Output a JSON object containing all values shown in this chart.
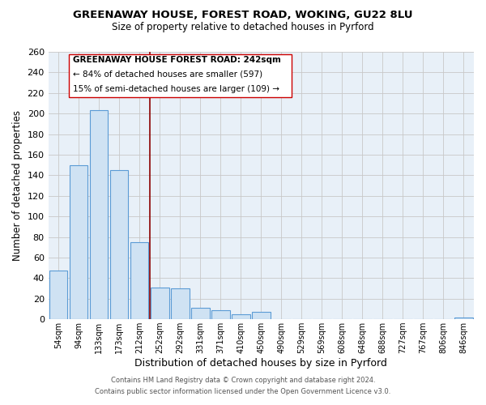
{
  "title1": "GREENAWAY HOUSE, FOREST ROAD, WOKING, GU22 8LU",
  "title2": "Size of property relative to detached houses in Pyrford",
  "xlabel": "Distribution of detached houses by size in Pyrford",
  "ylabel": "Number of detached properties",
  "bar_labels": [
    "54sqm",
    "94sqm",
    "133sqm",
    "173sqm",
    "212sqm",
    "252sqm",
    "292sqm",
    "331sqm",
    "371sqm",
    "410sqm",
    "450sqm",
    "490sqm",
    "529sqm",
    "569sqm",
    "608sqm",
    "648sqm",
    "688sqm",
    "727sqm",
    "767sqm",
    "806sqm",
    "846sqm"
  ],
  "bar_values": [
    47,
    150,
    203,
    145,
    75,
    31,
    30,
    11,
    9,
    5,
    7,
    0,
    0,
    0,
    0,
    0,
    0,
    0,
    0,
    0,
    2
  ],
  "bar_color": "#cfe2f3",
  "bar_edge_color": "#5b9bd5",
  "vline_color": "#8b0000",
  "vline_x_index": 4.5,
  "ylim": [
    0,
    260
  ],
  "yticks": [
    0,
    20,
    40,
    60,
    80,
    100,
    120,
    140,
    160,
    180,
    200,
    220,
    240,
    260
  ],
  "annotation_line1": "GREENAWAY HOUSE FOREST ROAD: 242sqm",
  "annotation_line2": "← 84% of detached houses are smaller (597)",
  "annotation_line3": "15% of semi-detached houses are larger (109) →",
  "footer1": "Contains HM Land Registry data © Crown copyright and database right 2024.",
  "footer2": "Contains public sector information licensed under the Open Government Licence v3.0.",
  "bg_color": "#ffffff",
  "plot_bg_color": "#e8f0f8",
  "grid_color": "#c8c8c8"
}
